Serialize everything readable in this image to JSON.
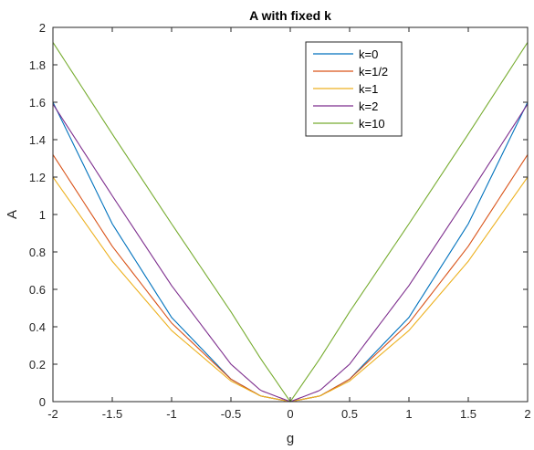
{
  "chart_data": {
    "type": "line",
    "title": "A with fixed k",
    "xlabel": "g",
    "ylabel": "A",
    "xlim": [
      -2,
      2
    ],
    "ylim": [
      0,
      2
    ],
    "xticks": [
      "-2",
      "-1.5",
      "-1",
      "-0.5",
      "0",
      "0.5",
      "1",
      "1.5",
      "2"
    ],
    "yticks": [
      "0",
      "0.2",
      "0.4",
      "0.6",
      "0.8",
      "1",
      "1.2",
      "1.4",
      "1.6",
      "1.8",
      "2"
    ],
    "grid": false,
    "legend_position": "top-right",
    "x": [
      -2,
      -1.5,
      -1,
      -0.5,
      -0.25,
      0,
      0.25,
      0.5,
      1,
      1.5,
      2
    ],
    "series": [
      {
        "name": "k=0",
        "color": "#0072BD",
        "values": [
          1.6,
          0.95,
          0.45,
          0.12,
          0.03,
          0,
          0.03,
          0.12,
          0.45,
          0.95,
          1.6
        ]
      },
      {
        "name": "k=1/2",
        "color": "#D95319",
        "values": [
          1.32,
          0.83,
          0.42,
          0.12,
          0.03,
          0,
          0.03,
          0.12,
          0.42,
          0.83,
          1.32
        ]
      },
      {
        "name": "k=1",
        "color": "#EDB120",
        "values": [
          1.2,
          0.75,
          0.38,
          0.11,
          0.03,
          0,
          0.03,
          0.11,
          0.38,
          0.75,
          1.2
        ]
      },
      {
        "name": "k=2",
        "color": "#7E2F8E",
        "values": [
          1.59,
          1.1,
          0.62,
          0.2,
          0.06,
          0,
          0.06,
          0.2,
          0.62,
          1.1,
          1.59
        ]
      },
      {
        "name": "k=10",
        "color": "#77AC30",
        "values": [
          1.92,
          1.43,
          0.95,
          0.48,
          0.23,
          0,
          0.23,
          0.48,
          0.95,
          1.43,
          1.92
        ]
      }
    ]
  }
}
